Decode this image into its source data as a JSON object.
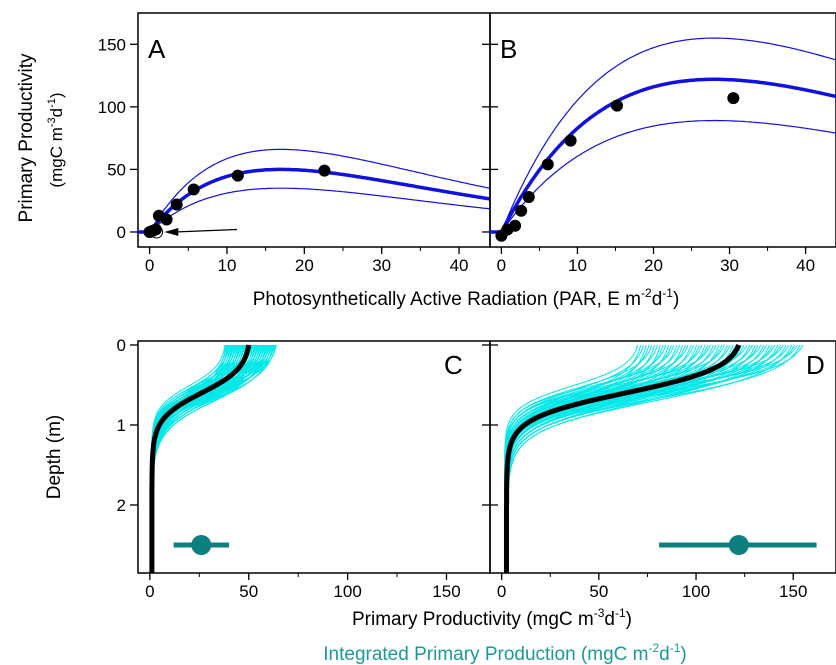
{
  "colors": {
    "fit": "#1010e0",
    "points": "#000000",
    "ensemble": "#00e8e8",
    "integrated": "#0e7f7f",
    "integrated_label": "#1a9a9a"
  },
  "labels": {
    "top_ylabel_1": "Primary Productivity",
    "top_ylabel_2": "(mgC m",
    "top_ylabel_2_sup": "-3",
    "top_ylabel_2_mid": "d",
    "top_ylabel_2_sup2": "-1",
    "top_ylabel_2_end": ")",
    "top_xlabel": "Photosynthetically Active Radiation (PAR, E m",
    "top_xlabel_sup": "-2",
    "top_xlabel_mid": "d",
    "top_xlabel_sup2": "-1",
    "top_xlabel_end": ")",
    "bottom_ylabel": "Depth (m)",
    "bottom_xlabel": "Primary Productivity (mgC m",
    "bottom_xlabel_sup": "-3",
    "bottom_xlabel_mid": "d",
    "bottom_xlabel_sup2": "-1",
    "bottom_xlabel_end": ")",
    "integrated_label": "Integrated Primary Production (mgC m",
    "integrated_label_sup": "-2",
    "integrated_label_mid": "d",
    "integrated_label_sup2": "-1",
    "integrated_label_end": ")"
  },
  "chart_data": [
    {
      "panel": "A",
      "type": "scatter",
      "xlim": [
        -1.5,
        44
      ],
      "ylim": [
        -12,
        175
      ],
      "xticks": [
        0,
        10,
        20,
        30,
        40
      ],
      "yticks": [
        0,
        50,
        100,
        150
      ],
      "points": [
        [
          0,
          0
        ],
        [
          0.4,
          1
        ],
        [
          0.8,
          2
        ],
        [
          1.2,
          13
        ],
        [
          2.2,
          10
        ],
        [
          3.5,
          22
        ],
        [
          5.7,
          34
        ],
        [
          11.4,
          45
        ],
        [
          22.6,
          49
        ]
      ],
      "open_point": [
        0.9,
        0
      ],
      "fit": {
        "Pmax": 50,
        "Iopt": 17,
        "lower_factor": 0.7,
        "upper_factor": 1.32
      },
      "arrow": {
        "from": [
          11.3,
          2
        ],
        "to": [
          1.9,
          0
        ]
      }
    },
    {
      "panel": "B",
      "type": "scatter",
      "xlim": [
        -1.5,
        44
      ],
      "ylim": [
        -12,
        175
      ],
      "xticks": [
        0,
        10,
        20,
        30,
        40
      ],
      "yticks": [
        0,
        50,
        100,
        150
      ],
      "points": [
        [
          0,
          -3
        ],
        [
          0.8,
          2
        ],
        [
          1.8,
          5
        ],
        [
          2.6,
          17
        ],
        [
          3.6,
          28
        ],
        [
          6.1,
          54
        ],
        [
          9.1,
          73
        ],
        [
          15.2,
          101
        ],
        [
          30.5,
          107
        ]
      ],
      "fit": {
        "Pmax": 122,
        "Iopt": 28,
        "lower_factor": 0.73,
        "upper_factor": 1.27
      }
    },
    {
      "panel": "C",
      "type": "line",
      "xlim": [
        -6,
        172
      ],
      "ylim": [
        2.85,
        -0.05
      ],
      "xticks": [
        0,
        50,
        100,
        150
      ],
      "yticks": [
        0,
        1,
        2
      ],
      "profile": {
        "surface_value": 50,
        "ensemble_min": 38,
        "ensemble_max": 64,
        "max_depth": 2.85
      },
      "integrated": {
        "value": 26,
        "low": 12,
        "high": 40,
        "depth": 2.5
      }
    },
    {
      "panel": "D",
      "type": "line",
      "xlim": [
        -6,
        172
      ],
      "ylim": [
        2.85,
        -0.05
      ],
      "xticks": [
        0,
        50,
        100,
        150
      ],
      "yticks": [
        0,
        1,
        2
      ],
      "profile": {
        "surface_value": 122,
        "ensemble_min": 70,
        "ensemble_max": 155,
        "max_depth": 2.85
      },
      "integrated": {
        "value": 122,
        "low": 81,
        "high": 162,
        "depth": 2.5
      }
    }
  ],
  "panel_letters": [
    "A",
    "B",
    "C",
    "D"
  ]
}
